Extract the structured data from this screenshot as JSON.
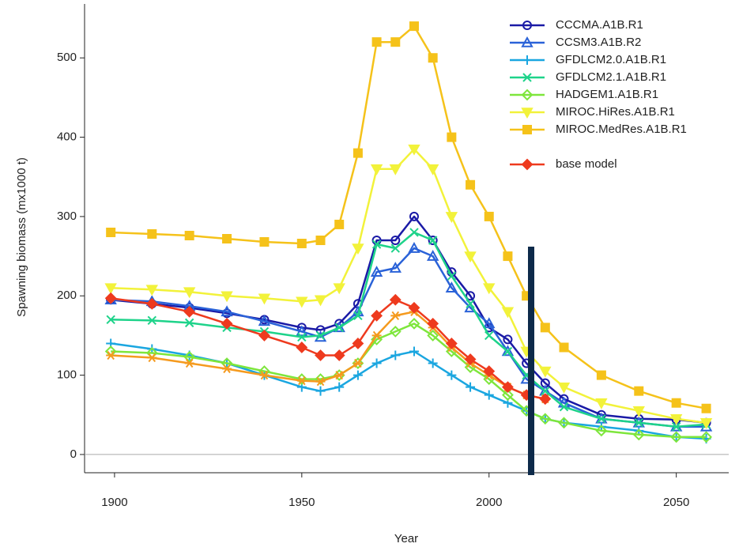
{
  "chart_data": {
    "type": "line",
    "x_label": "Year",
    "y_label": "Spawning biomass (mx1000 t)",
    "x": [
      1899,
      1910,
      1920,
      1930,
      1940,
      1950,
      1955,
      1960,
      1965,
      1970,
      1975,
      1980,
      1985,
      1990,
      1995,
      2000,
      2005,
      2010,
      2015,
      2020,
      2030,
      2040,
      2050,
      2058
    ],
    "xlim": [
      1892,
      2064
    ],
    "xticks": [
      1900,
      1950,
      2000,
      2050
    ],
    "ylim": [
      -23,
      568
    ],
    "yticks": [
      0,
      100,
      200,
      300,
      400,
      500
    ],
    "legend": "top-right",
    "series": [
      {
        "name": "CCCMA.A1B.R1",
        "color": "#1a1aa6",
        "marker": "circle",
        "values": [
          195,
          190,
          185,
          178,
          170,
          160,
          157,
          165,
          190,
          270,
          270,
          300,
          270,
          230,
          200,
          160,
          145,
          115,
          90,
          70,
          50,
          45,
          44,
          40
        ]
      },
      {
        "name": "CCSM3.A1B.R2",
        "color": "#2a62d8",
        "marker": "triangle",
        "values": [
          195,
          193,
          187,
          180,
          168,
          155,
          148,
          160,
          180,
          230,
          235,
          260,
          250,
          210,
          185,
          165,
          130,
          95,
          80,
          65,
          45,
          40,
          35,
          35
        ]
      },
      {
        "name": "GFDLCM2.0.A1B.R1",
        "color": "#1aa6e0",
        "marker": "plus",
        "values": [
          140,
          133,
          125,
          115,
          100,
          85,
          80,
          85,
          100,
          115,
          125,
          130,
          115,
          100,
          85,
          75,
          65,
          55,
          45,
          40,
          35,
          30,
          22,
          20
        ]
      },
      {
        "name": "GFDLCM2.1.A1B.R1",
        "color": "#1ed38a",
        "marker": "cross",
        "values": [
          170,
          169,
          166,
          160,
          155,
          148,
          150,
          160,
          175,
          265,
          260,
          280,
          270,
          225,
          190,
          150,
          130,
          100,
          80,
          60,
          45,
          40,
          35,
          38
        ]
      },
      {
        "name": "HADGEM1.A1B.R1",
        "color": "#7ee63c",
        "marker": "diamond",
        "values": [
          130,
          128,
          123,
          115,
          105,
          95,
          95,
          100,
          115,
          145,
          155,
          165,
          150,
          130,
          110,
          95,
          75,
          55,
          45,
          40,
          30,
          25,
          22,
          22
        ]
      },
      {
        "name": "MIROC.HiRes.A1B.R1",
        "color": "#f2f23a",
        "marker": "down-triangle",
        "values": [
          210,
          208,
          205,
          200,
          197,
          193,
          195,
          210,
          260,
          360,
          360,
          385,
          360,
          300,
          250,
          210,
          180,
          130,
          105,
          85,
          65,
          55,
          45,
          40
        ]
      },
      {
        "name": "MIROC.MedRes.A1B.R1",
        "color": "#f5c21a",
        "marker": "square",
        "values": [
          280,
          278,
          276,
          272,
          268,
          266,
          270,
          290,
          380,
          520,
          520,
          540,
          500,
          400,
          340,
          300,
          250,
          200,
          160,
          135,
          100,
          80,
          65,
          58
        ]
      },
      {
        "name": null,
        "color": "#f59a1e",
        "marker": "asterisk",
        "values": [
          125,
          122,
          115,
          108,
          100,
          93,
          92,
          100,
          115,
          150,
          175,
          180,
          160,
          135,
          115,
          100,
          85,
          75,
          70,
          null,
          null,
          null,
          null,
          null
        ]
      },
      {
        "name": "base model",
        "color": "#ee3a1e",
        "marker": "diamond",
        "values": [
          197,
          190,
          180,
          165,
          150,
          135,
          125,
          125,
          140,
          175,
          195,
          185,
          165,
          140,
          120,
          105,
          85,
          75,
          70,
          null,
          null,
          null,
          null,
          null
        ]
      }
    ]
  }
}
